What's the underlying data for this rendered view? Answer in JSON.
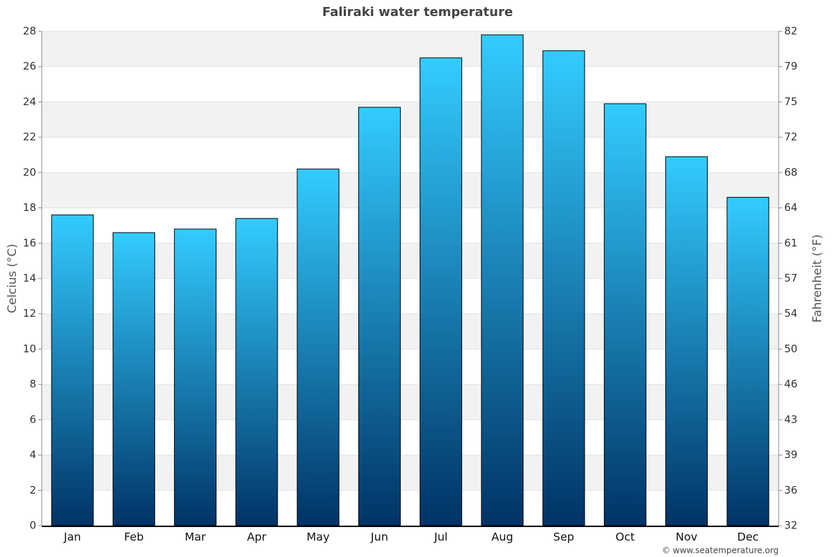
{
  "chart_data": {
    "type": "bar",
    "title": "Faliraki water temperature",
    "y_label": "Celcius (°C)",
    "y2_label": "Fahrenheit (°F)",
    "source": "© www.seatemperature.org",
    "categories": [
      "Jan",
      "Feb",
      "Mar",
      "Apr",
      "May",
      "Jun",
      "Jul",
      "Aug",
      "Sep",
      "Oct",
      "Nov",
      "Dec"
    ],
    "values": [
      17.6,
      16.6,
      16.8,
      17.4,
      20.2,
      23.7,
      26.5,
      27.8,
      26.9,
      23.9,
      20.9,
      18.6
    ],
    "color": "#1a8fd0",
    "ylim": [
      0,
      28
    ],
    "yticks": [
      0,
      2,
      4,
      6,
      8,
      10,
      12,
      14,
      16,
      18,
      20,
      22,
      24,
      26,
      28
    ],
    "y2lim": [
      32,
      82.4
    ],
    "y2ticks": [
      32,
      {
        "value": 35.6,
        "label": "36"
      },
      {
        "value": 39.2,
        "label": "39"
      },
      {
        "value": 42.8,
        "label": "43"
      },
      {
        "value": 46.4,
        "label": "46"
      },
      50,
      {
        "value": 53.6,
        "label": "54"
      },
      {
        "value": 57.2,
        "label": "57"
      },
      {
        "value": 60.8,
        "label": "61"
      },
      {
        "value": 64.4,
        "label": "64"
      },
      68,
      {
        "value": 71.6,
        "label": "72"
      },
      {
        "value": 75.2,
        "label": "75"
      },
      {
        "value": 78.8,
        "label": "79"
      },
      {
        "value": 82.4,
        "label": "82"
      }
    ],
    "grid": true
  }
}
